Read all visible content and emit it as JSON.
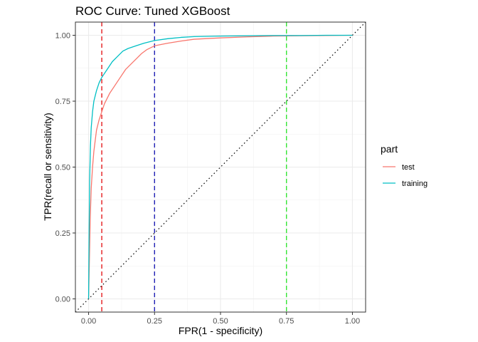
{
  "chart_data": {
    "type": "line",
    "title": "ROC Curve: Tuned XGBoost",
    "xlabel": "FPR(1 - specificity)",
    "ylabel": "TPR(recall or sensitivity)",
    "xlim": [
      -0.05,
      1.05
    ],
    "ylim": [
      -0.05,
      1.05
    ],
    "x_ticks": [
      0.0,
      0.25,
      0.5,
      0.75,
      1.0
    ],
    "x_tick_labels": [
      "0.00",
      "0.25",
      "0.50",
      "0.75",
      "1.00"
    ],
    "y_ticks": [
      0.0,
      0.25,
      0.5,
      0.75,
      1.0
    ],
    "y_tick_labels": [
      "0.00",
      "0.25",
      "0.50",
      "0.75",
      "1.00"
    ],
    "grid": true,
    "legend": {
      "title": "part",
      "position": "right"
    },
    "series": [
      {
        "name": "test",
        "color": "#F8766D",
        "x": [
          0.0,
          0.003,
          0.006,
          0.01,
          0.015,
          0.02,
          0.03,
          0.04,
          0.05,
          0.06,
          0.07,
          0.08,
          0.1,
          0.12,
          0.14,
          0.16,
          0.18,
          0.2,
          0.22,
          0.25,
          0.3,
          0.35,
          0.4,
          0.5,
          0.6,
          0.7,
          0.8,
          0.9,
          1.0
        ],
        "y": [
          0.0,
          0.15,
          0.3,
          0.42,
          0.5,
          0.56,
          0.64,
          0.68,
          0.71,
          0.74,
          0.76,
          0.78,
          0.81,
          0.84,
          0.87,
          0.89,
          0.91,
          0.93,
          0.945,
          0.96,
          0.97,
          0.978,
          0.985,
          0.99,
          0.994,
          0.997,
          0.998,
          0.999,
          1.0
        ]
      },
      {
        "name": "training",
        "color": "#00BFC4",
        "x": [
          0.0,
          0.002,
          0.004,
          0.007,
          0.01,
          0.015,
          0.02,
          0.03,
          0.04,
          0.05,
          0.07,
          0.09,
          0.11,
          0.13,
          0.15,
          0.18,
          0.21,
          0.25,
          0.3,
          0.35,
          0.4,
          0.5,
          0.6,
          0.7,
          0.8,
          0.9,
          1.0
        ],
        "y": [
          0.0,
          0.25,
          0.45,
          0.58,
          0.65,
          0.71,
          0.75,
          0.79,
          0.82,
          0.84,
          0.87,
          0.9,
          0.92,
          0.94,
          0.95,
          0.96,
          0.97,
          0.98,
          0.987,
          0.992,
          0.995,
          0.997,
          0.998,
          0.999,
          0.999,
          1.0,
          1.0
        ]
      }
    ],
    "reference_lines": [
      {
        "type": "vline",
        "x": 0.05,
        "color": "#E41A1C",
        "style": "dashed"
      },
      {
        "type": "vline",
        "x": 0.25,
        "color": "#1F1FB4",
        "style": "dashed"
      },
      {
        "type": "vline",
        "x": 0.75,
        "color": "#33E633",
        "style": "dashed"
      },
      {
        "type": "abline",
        "slope": 1,
        "intercept": 0,
        "color": "#000000",
        "style": "dotted"
      }
    ]
  }
}
